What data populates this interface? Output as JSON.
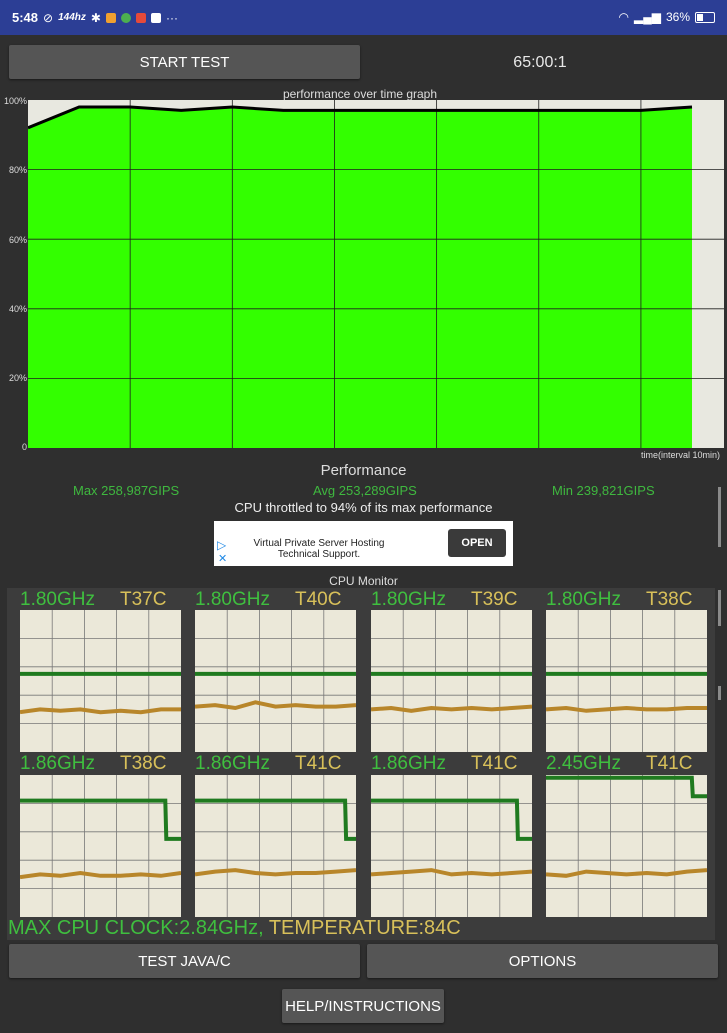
{
  "status_bar": {
    "time": "5:48",
    "left_icons": [
      "alarm-off-icon",
      "144hz-icon",
      "settings-icon",
      "app-icon",
      "chrome-icon",
      "photos-icon",
      "gmail-icon",
      "more-icon"
    ],
    "hz_label": "144hz",
    "more": "···",
    "battery_percent": "36%"
  },
  "controls": {
    "start_test": "START TEST",
    "timer": "65:00:1",
    "test_java": "TEST JAVA/C",
    "options": "OPTIONS",
    "help": "HELP/INSTRUCTIONS"
  },
  "graph": {
    "title": "performance over time graph",
    "y_ticks": [
      "100%",
      "80%",
      "60%",
      "40%",
      "20%",
      "0"
    ],
    "x_label": "time(interval 10min)",
    "colors": {
      "fill": "#33ff00",
      "line": "#000000",
      "grid": "#1f1f1f",
      "background": "#e8e8e0"
    }
  },
  "chart_data": {
    "type": "area",
    "title": "performance over time graph",
    "xlabel": "time(interval 10min)",
    "ylabel": "",
    "ylim": [
      0,
      100
    ],
    "x_interval_minutes": 10,
    "x_minutes": [
      0,
      5,
      10,
      15,
      20,
      25,
      30,
      35,
      40,
      45,
      50,
      55,
      60,
      65
    ],
    "series": [
      {
        "values": [
          92,
          98,
          98,
          97,
          98,
          97,
          97,
          97,
          97,
          97,
          97,
          97,
          97,
          98
        ]
      }
    ]
  },
  "performance": {
    "label": "Performance",
    "max": "Max 258,987GIPS",
    "avg": "Avg 253,289GIPS",
    "min": "Min 239,821GIPS",
    "throttle": "CPU throttled to 94% of its max performance"
  },
  "ad": {
    "line1": "Virtual Private Server Hosting",
    "line2": "Technical Support.",
    "button": "OPEN"
  },
  "cpu_monitor": {
    "title": "CPU Monitor",
    "cores": [
      {
        "freq": "1.80GHz",
        "temp": "T37C",
        "freq_levels": [
          0.55,
          0.55,
          0.55,
          0.55,
          0.55,
          0.55,
          0.55,
          0.55,
          0.55
        ],
        "temp_levels": [
          0.28,
          0.3,
          0.29,
          0.3,
          0.28,
          0.29,
          0.28,
          0.3,
          0.3
        ]
      },
      {
        "freq": "1.80GHz",
        "temp": "T40C",
        "freq_levels": [
          0.55,
          0.55,
          0.55,
          0.55,
          0.55,
          0.55,
          0.55,
          0.55,
          0.55
        ],
        "temp_levels": [
          0.32,
          0.33,
          0.31,
          0.35,
          0.32,
          0.33,
          0.32,
          0.32,
          0.33
        ]
      },
      {
        "freq": "1.80GHz",
        "temp": "T39C",
        "freq_levels": [
          0.55,
          0.55,
          0.55,
          0.55,
          0.55,
          0.55,
          0.55,
          0.55,
          0.55
        ],
        "temp_levels": [
          0.3,
          0.31,
          0.29,
          0.31,
          0.3,
          0.31,
          0.3,
          0.31,
          0.32
        ]
      },
      {
        "freq": "1.80GHz",
        "temp": "T38C",
        "freq_levels": [
          0.55,
          0.55,
          0.55,
          0.55,
          0.55,
          0.55,
          0.55,
          0.55,
          0.55
        ],
        "temp_levels": [
          0.3,
          0.31,
          0.29,
          0.3,
          0.31,
          0.3,
          0.3,
          0.31,
          0.31
        ]
      },
      {
        "freq": "1.86GHz",
        "temp": "T38C",
        "freq_levels": [
          0.82,
          0.82,
          0.82,
          0.82,
          0.82,
          0.82,
          0.82,
          0.82,
          0.82,
          0.82,
          0.82,
          0.82,
          0.82,
          0.82,
          0.82,
          0.82,
          0.82,
          0.82,
          0.82,
          0.82,
          0.82,
          0.82,
          0.82,
          0.82,
          0.82,
          0.82,
          0.82,
          0.82,
          0.82,
          0.82,
          0.82,
          0.82,
          0.82,
          0.82,
          0.82,
          0.82,
          0.82,
          0.82,
          0.82,
          0.82,
          0.82,
          0.82,
          0.82,
          0.82,
          0.82,
          0.82,
          0.82,
          0.82,
          0.82,
          0.82,
          0.82,
          0.82,
          0.82,
          0.82,
          0.82,
          0.82,
          0.82,
          0.82,
          0.82,
          0.82,
          0.82,
          0.82,
          0.82,
          0.82,
          0.82,
          0.82,
          0.82,
          0.82,
          0.82,
          0.82,
          0.82,
          0.82,
          0.82,
          0.82,
          0.82,
          0.82,
          0.82,
          0.82,
          0.82,
          0.82,
          0.82,
          0.82,
          0.82,
          0.82,
          0.82,
          0.82,
          0.82,
          0.82,
          0.82,
          0.82,
          0.82,
          0.82,
          0.82,
          0.82,
          0.82,
          0.82,
          0.82,
          0.82,
          0.82,
          0.82,
          0.82,
          0.82,
          0.82,
          0.82,
          0.82,
          0.82,
          0.82,
          0.82,
          0.82,
          0.82,
          0.82,
          0.82,
          0.82,
          0.82,
          0.82,
          0.82,
          0.82,
          0.82,
          0.82,
          0.82,
          0.82,
          0.82,
          0.82,
          0.82,
          0.82,
          0.82,
          0.82,
          0.82,
          0.82,
          0.82,
          0.82,
          0.82,
          0.82,
          0.82,
          0.82,
          0.82,
          0.82,
          0.82,
          0.82,
          0.82,
          0.82,
          0.82,
          0.82,
          0.82,
          0.82,
          0.82,
          0.82,
          0.82,
          0.82,
          0.55,
          0.55,
          0.55,
          0.55,
          0.55,
          0.55,
          0.55,
          0.55,
          0.55,
          0.55,
          0.55,
          0.55,
          0.55,
          0.55,
          0.55,
          0.55
        ],
        "temp_levels": [
          0.28,
          0.3,
          0.29,
          0.31,
          0.29,
          0.29,
          0.3,
          0.29,
          0.31
        ]
      },
      {
        "freq": "1.86GHz",
        "temp": "T41C",
        "freq_levels": [
          0.82,
          0.82,
          0.82,
          0.82,
          0.82,
          0.82,
          0.82,
          0.82,
          0.82,
          0.82,
          0.82,
          0.82,
          0.82,
          0.82,
          0.82,
          0.82,
          0.82,
          0.82,
          0.82,
          0.82,
          0.82,
          0.82,
          0.82,
          0.82,
          0.82,
          0.82,
          0.82,
          0.82,
          0.82,
          0.82,
          0.82,
          0.82,
          0.82,
          0.82,
          0.82,
          0.82,
          0.82,
          0.82,
          0.82,
          0.82,
          0.82,
          0.82,
          0.82,
          0.82,
          0.82,
          0.82,
          0.82,
          0.82,
          0.82,
          0.82,
          0.82,
          0.82,
          0.82,
          0.82,
          0.82,
          0.82,
          0.82,
          0.82,
          0.82,
          0.82,
          0.82,
          0.82,
          0.82,
          0.82,
          0.82,
          0.82,
          0.82,
          0.82,
          0.82,
          0.82,
          0.82,
          0.82,
          0.82,
          0.82,
          0.82,
          0.82,
          0.82,
          0.82,
          0.82,
          0.82,
          0.82,
          0.82,
          0.82,
          0.82,
          0.82,
          0.82,
          0.82,
          0.82,
          0.82,
          0.82,
          0.82,
          0.82,
          0.82,
          0.82,
          0.82,
          0.82,
          0.82,
          0.82,
          0.82,
          0.82,
          0.82,
          0.82,
          0.82,
          0.82,
          0.82,
          0.82,
          0.82,
          0.82,
          0.82,
          0.82,
          0.82,
          0.82,
          0.82,
          0.82,
          0.82,
          0.82,
          0.82,
          0.82,
          0.82,
          0.82,
          0.82,
          0.82,
          0.82,
          0.82,
          0.82,
          0.82,
          0.82,
          0.82,
          0.82,
          0.82,
          0.82,
          0.82,
          0.82,
          0.82,
          0.82,
          0.82,
          0.82,
          0.82,
          0.82,
          0.82,
          0.82,
          0.82,
          0.82,
          0.82,
          0.82,
          0.82,
          0.82,
          0.82,
          0.82,
          0.82,
          0.82,
          0.82,
          0.82,
          0.55,
          0.55,
          0.55,
          0.55,
          0.55,
          0.55,
          0.55,
          0.55,
          0.55,
          0.55,
          0.55
        ],
        "temp_levels": [
          0.3,
          0.32,
          0.33,
          0.31,
          0.3,
          0.31,
          0.31,
          0.32,
          0.33
        ]
      },
      {
        "freq": "1.86GHz",
        "temp": "T41C",
        "freq_levels": [
          0.82,
          0.82,
          0.82,
          0.82,
          0.82,
          0.82,
          0.82,
          0.82,
          0.82,
          0.82,
          0.82,
          0.82,
          0.82,
          0.82,
          0.82,
          0.82,
          0.82,
          0.82,
          0.82,
          0.82,
          0.82,
          0.82,
          0.82,
          0.82,
          0.82,
          0.82,
          0.82,
          0.82,
          0.82,
          0.82,
          0.82,
          0.82,
          0.82,
          0.82,
          0.82,
          0.82,
          0.82,
          0.82,
          0.82,
          0.82,
          0.82,
          0.82,
          0.82,
          0.82,
          0.82,
          0.82,
          0.82,
          0.82,
          0.82,
          0.82,
          0.82,
          0.82,
          0.82,
          0.82,
          0.82,
          0.82,
          0.82,
          0.82,
          0.82,
          0.82,
          0.82,
          0.82,
          0.82,
          0.82,
          0.82,
          0.82,
          0.82,
          0.82,
          0.82,
          0.82,
          0.82,
          0.82,
          0.82,
          0.82,
          0.82,
          0.82,
          0.82,
          0.82,
          0.82,
          0.82,
          0.82,
          0.82,
          0.82,
          0.82,
          0.82,
          0.82,
          0.82,
          0.82,
          0.82,
          0.82,
          0.82,
          0.82,
          0.82,
          0.82,
          0.82,
          0.82,
          0.82,
          0.82,
          0.82,
          0.82,
          0.82,
          0.82,
          0.82,
          0.82,
          0.82,
          0.82,
          0.82,
          0.82,
          0.82,
          0.82,
          0.82,
          0.82,
          0.82,
          0.82,
          0.82,
          0.82,
          0.82,
          0.82,
          0.82,
          0.82,
          0.82,
          0.82,
          0.82,
          0.82,
          0.82,
          0.82,
          0.82,
          0.82,
          0.82,
          0.82,
          0.82,
          0.82,
          0.82,
          0.82,
          0.82,
          0.82,
          0.82,
          0.82,
          0.82,
          0.82,
          0.82,
          0.82,
          0.82,
          0.82,
          0.82,
          0.82,
          0.55,
          0.55,
          0.55,
          0.55,
          0.55,
          0.55,
          0.55,
          0.55,
          0.55,
          0.55,
          0.55,
          0.55,
          0.55,
          0.55,
          0.55
        ],
        "temp_levels": [
          0.3,
          0.31,
          0.32,
          0.33,
          0.3,
          0.31,
          0.3,
          0.31,
          0.32
        ]
      },
      {
        "freq": "2.45GHz",
        "temp": "T41C",
        "freq_levels": [
          0.98,
          0.98,
          0.98,
          0.98,
          0.98,
          0.98,
          0.98,
          0.98,
          0.98,
          0.98,
          0.98,
          0.98,
          0.98,
          0.98,
          0.98,
          0.98,
          0.98,
          0.98,
          0.98,
          0.98,
          0.98,
          0.98,
          0.98,
          0.98,
          0.98,
          0.98,
          0.98,
          0.98,
          0.98,
          0.98,
          0.98,
          0.98,
          0.98,
          0.98,
          0.98,
          0.98,
          0.98,
          0.98,
          0.98,
          0.98,
          0.98,
          0.98,
          0.98,
          0.98,
          0.98,
          0.98,
          0.98,
          0.98,
          0.98,
          0.98,
          0.98,
          0.98,
          0.98,
          0.98,
          0.98,
          0.98,
          0.98,
          0.98,
          0.98,
          0.98,
          0.98,
          0.98,
          0.98,
          0.98,
          0.98,
          0.98,
          0.98,
          0.98,
          0.98,
          0.98,
          0.98,
          0.98,
          0.98,
          0.98,
          0.98,
          0.98,
          0.98,
          0.98,
          0.98,
          0.98,
          0.98,
          0.98,
          0.98,
          0.98,
          0.98,
          0.98,
          0.98,
          0.98,
          0.98,
          0.98,
          0.98,
          0.98,
          0.98,
          0.98,
          0.98,
          0.98,
          0.98,
          0.98,
          0.98,
          0.98,
          0.98,
          0.98,
          0.98,
          0.98,
          0.98,
          0.98,
          0.98,
          0.98,
          0.98,
          0.98,
          0.98,
          0.98,
          0.98,
          0.98,
          0.98,
          0.98,
          0.98,
          0.98,
          0.98,
          0.98,
          0.98,
          0.98,
          0.98,
          0.98,
          0.98,
          0.98,
          0.98,
          0.98,
          0.98,
          0.98,
          0.98,
          0.98,
          0.98,
          0.98,
          0.98,
          0.98,
          0.98,
          0.98,
          0.98,
          0.98,
          0.98,
          0.98,
          0.98,
          0.98,
          0.98,
          0.85,
          0.85,
          0.85,
          0.85,
          0.85,
          0.85,
          0.85,
          0.85,
          0.85,
          0.85,
          0.85,
          0.85,
          0.85,
          0.85,
          0.85
        ],
        "temp_levels": [
          0.3,
          0.29,
          0.32,
          0.31,
          0.3,
          0.31,
          0.3,
          0.32,
          0.33
        ]
      }
    ],
    "max_clock": "MAX CPU CLOCK:2.84GHz,",
    "temperature": "TEMPERATURE:84C",
    "colors": {
      "freq": "#1f7a1f",
      "temp": "#b8862a",
      "panel": "#ebe8d9"
    }
  }
}
